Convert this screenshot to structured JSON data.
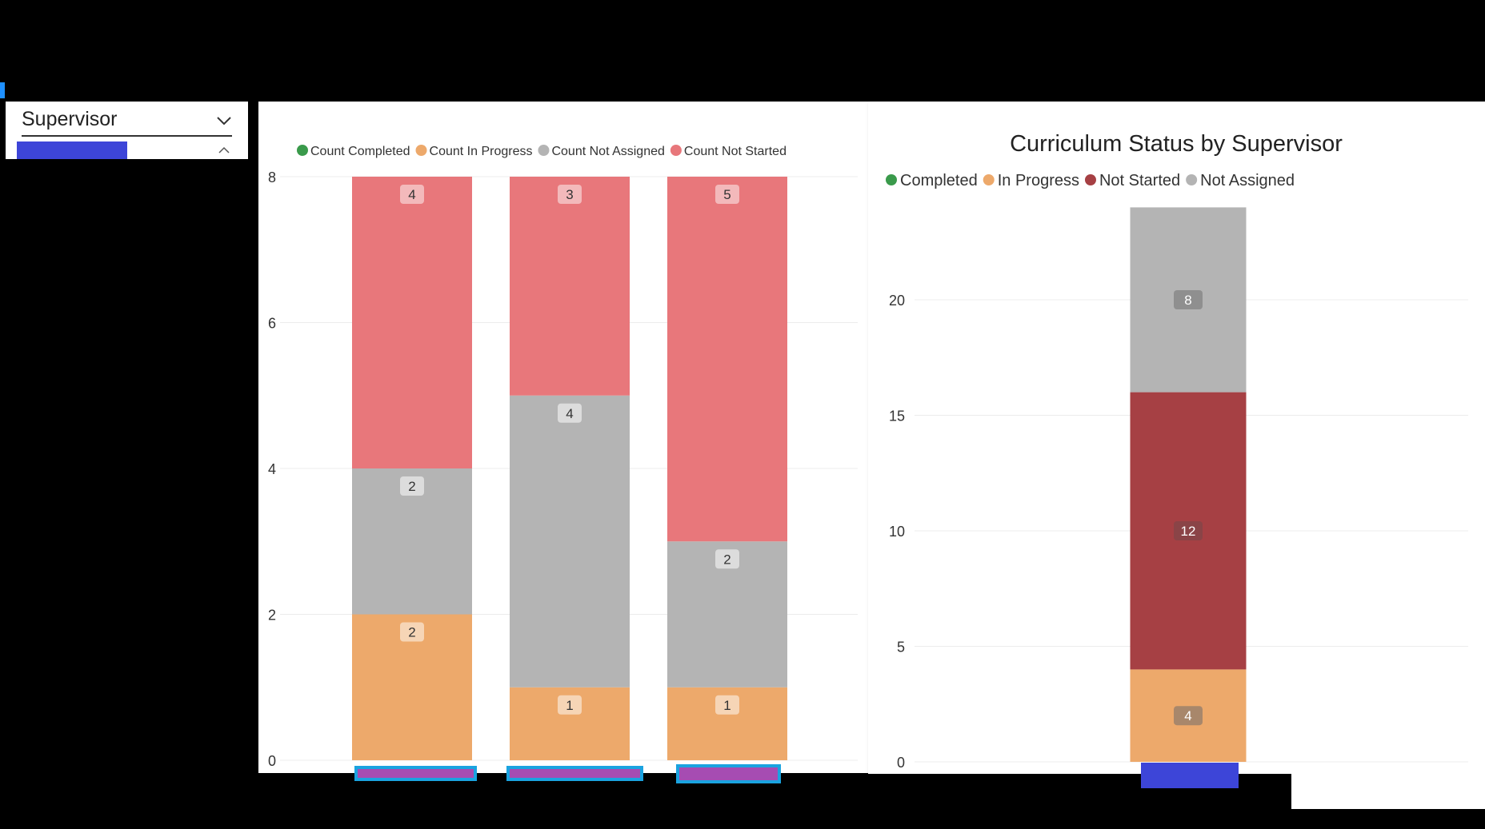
{
  "slicer": {
    "label": "Supervisor"
  },
  "colors": {
    "completed": "#3a9a4b",
    "in_progress": "#eda96b",
    "not_assigned": "#b4b4b4",
    "not_started": "#e8777b",
    "not_started_dark": "#a64044",
    "redacted_fill": "#3d45d8",
    "redacted_magenta": "#a64cb2",
    "redacted_border": "#1aa3e0"
  },
  "chart_data": [
    {
      "type": "bar",
      "stacked": true,
      "title": "",
      "categories": [
        "",
        "",
        ""
      ],
      "legend": [
        "Count Completed",
        "Count In Progress",
        "Count Not Assigned",
        "Count Not Started"
      ],
      "legend_position": "top-left",
      "series": [
        {
          "name": "Count Completed",
          "values": [
            0,
            0,
            0
          ]
        },
        {
          "name": "Count In Progress",
          "values": [
            2,
            1,
            1
          ]
        },
        {
          "name": "Count Not Assigned",
          "values": [
            2,
            4,
            2
          ]
        },
        {
          "name": "Count Not Started",
          "values": [
            4,
            3,
            5
          ]
        }
      ],
      "yticks": [
        0,
        2,
        4,
        6,
        8
      ],
      "ylim": [
        0,
        8
      ],
      "grid": true
    },
    {
      "type": "bar",
      "stacked": true,
      "title": "Curriculum Status by Supervisor",
      "categories": [
        ""
      ],
      "legend": [
        "Completed",
        "In Progress",
        "Not Started",
        "Not Assigned"
      ],
      "legend_position": "top-left",
      "series": [
        {
          "name": "Completed",
          "values": [
            0
          ]
        },
        {
          "name": "In Progress",
          "values": [
            4
          ]
        },
        {
          "name": "Not Started",
          "values": [
            12
          ]
        },
        {
          "name": "Not Assigned",
          "values": [
            8
          ]
        }
      ],
      "yticks": [
        0,
        5,
        10,
        15,
        20
      ],
      "ylim": [
        0,
        24
      ],
      "grid": true
    }
  ]
}
